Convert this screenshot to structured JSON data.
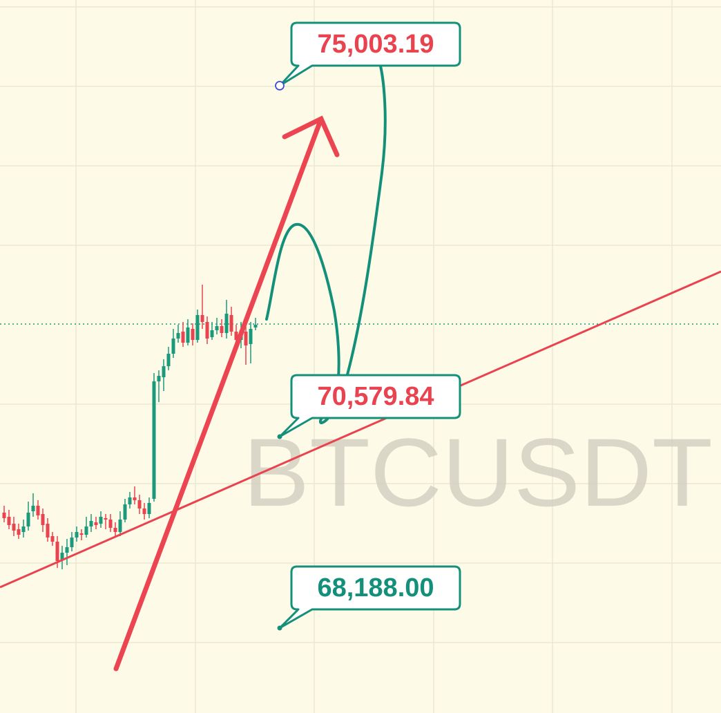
{
  "annotations": [
    {
      "label": "75,003.19"
    },
    {
      "label": "70,579.84"
    },
    {
      "label": "68,188.00"
    }
  ],
  "watermark": "BTCUSDT"
}
